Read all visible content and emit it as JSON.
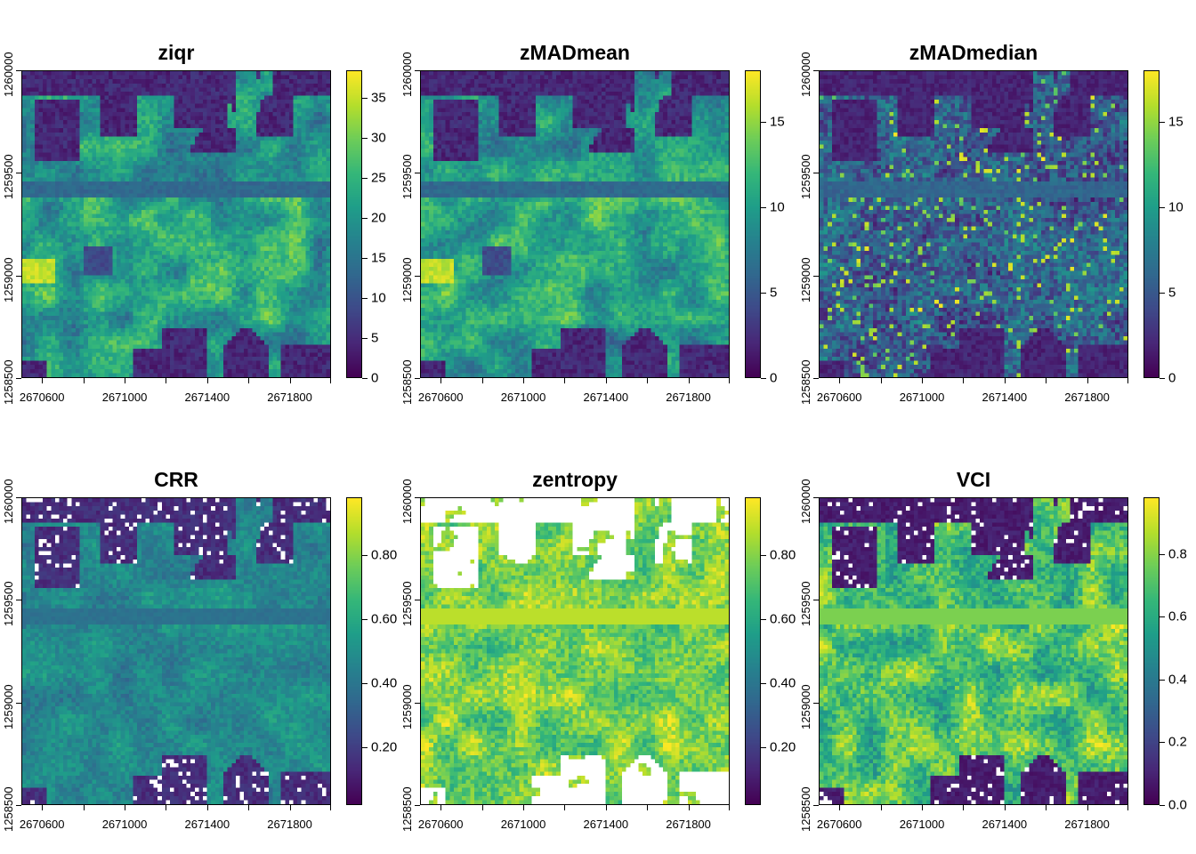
{
  "chart_data": [
    {
      "type": "heatmap",
      "title": "ziqr",
      "xlabel": "",
      "ylabel": "",
      "x_ticks": [
        "2670600",
        "2671000",
        "2671400",
        "2671800"
      ],
      "y_ticks": [
        "1258500",
        "1259000",
        "1259500",
        "1260000"
      ],
      "xlim": [
        2670500,
        2672000
      ],
      "ylim": [
        1258500,
        1260000
      ],
      "colorbar": {
        "min": 0,
        "max": 38.5,
        "ticks": [
          "0",
          "5",
          "10",
          "15",
          "20",
          "25",
          "30",
          "35"
        ],
        "tick_values": [
          0,
          5,
          10,
          15,
          20,
          25,
          30,
          35
        ]
      },
      "colormap": "viridis",
      "na_color": "#ffffff",
      "pattern": "height_ranges",
      "na_fraction": 0
    },
    {
      "type": "heatmap",
      "title": "zMADmean",
      "xlabel": "",
      "ylabel": "",
      "x_ticks": [
        "2670600",
        "2671000",
        "2671400",
        "2671800"
      ],
      "y_ticks": [
        "1258500",
        "1259000",
        "1259500",
        "1260000"
      ],
      "xlim": [
        2670500,
        2672000
      ],
      "ylim": [
        1258500,
        1260000
      ],
      "colorbar": {
        "min": 0,
        "max": 18,
        "ticks": [
          "0",
          "5",
          "10",
          "15"
        ],
        "tick_values": [
          0,
          5,
          10,
          15
        ]
      },
      "colormap": "viridis",
      "na_color": "#ffffff",
      "pattern": "height_ranges",
      "na_fraction": 0
    },
    {
      "type": "heatmap",
      "title": "zMADmedian",
      "xlabel": "",
      "ylabel": "",
      "x_ticks": [
        "2670600",
        "2671000",
        "2671400",
        "2671800"
      ],
      "y_ticks": [
        "1258500",
        "1259000",
        "1259500",
        "1260000"
      ],
      "xlim": [
        2670500,
        2672000
      ],
      "ylim": [
        1258500,
        1260000
      ],
      "colorbar": {
        "min": 0,
        "max": 18,
        "ticks": [
          "0",
          "5",
          "10",
          "15"
        ],
        "tick_values": [
          0,
          5,
          10,
          15
        ]
      },
      "colormap": "viridis",
      "na_color": "#ffffff",
      "pattern": "noisy_low",
      "na_fraction": 0
    },
    {
      "type": "heatmap",
      "title": "CRR",
      "xlabel": "",
      "ylabel": "",
      "x_ticks": [
        "2670600",
        "2671000",
        "2671400",
        "2671800"
      ],
      "y_ticks": [
        "1258500",
        "1259000",
        "1259500",
        "1260000"
      ],
      "xlim": [
        2670500,
        2672000
      ],
      "ylim": [
        1258500,
        1260000
      ],
      "colorbar": {
        "min": 0.02,
        "max": 0.98,
        "ticks": [
          "0.20",
          "0.40",
          "0.60",
          "0.80"
        ],
        "tick_values": [
          0.2,
          0.4,
          0.6,
          0.8
        ]
      },
      "colormap": "viridis",
      "na_color": "#ffffff",
      "pattern": "mid_values",
      "na_fraction": 0.05
    },
    {
      "type": "heatmap",
      "title": "zentropy",
      "xlabel": "",
      "ylabel": "",
      "x_ticks": [
        "2670600",
        "2671000",
        "2671400",
        "2671800"
      ],
      "y_ticks": [
        "1258500",
        "1259000",
        "1259500",
        "1260000"
      ],
      "xlim": [
        2670500,
        2672000
      ],
      "ylim": [
        1258500,
        1260000
      ],
      "colorbar": {
        "min": 0.02,
        "max": 0.98,
        "ticks": [
          "0.20",
          "0.40",
          "0.60",
          "0.80"
        ],
        "tick_values": [
          0.2,
          0.4,
          0.6,
          0.8
        ]
      },
      "colormap": "viridis",
      "na_color": "#ffffff",
      "pattern": "high_values_na_in_gaps",
      "na_fraction": 0.18
    },
    {
      "type": "heatmap",
      "title": "VCI",
      "xlabel": "",
      "ylabel": "",
      "x_ticks": [
        "2670600",
        "2671000",
        "2671400",
        "2671800"
      ],
      "y_ticks": [
        "1258500",
        "1259000",
        "1259500",
        "1260000"
      ],
      "xlim": [
        2670500,
        2672000
      ],
      "ylim": [
        1258500,
        1260000
      ],
      "colorbar": {
        "min": 0,
        "max": 0.98,
        "ticks": [
          "0.0",
          "0.2",
          "0.4",
          "0.6",
          "0.8"
        ],
        "tick_values": [
          0,
          0.2,
          0.4,
          0.6,
          0.8
        ]
      },
      "colormap": "viridis",
      "na_color": "#ffffff",
      "pattern": "high_values_dark_gaps",
      "na_fraction": 0.04
    }
  ]
}
